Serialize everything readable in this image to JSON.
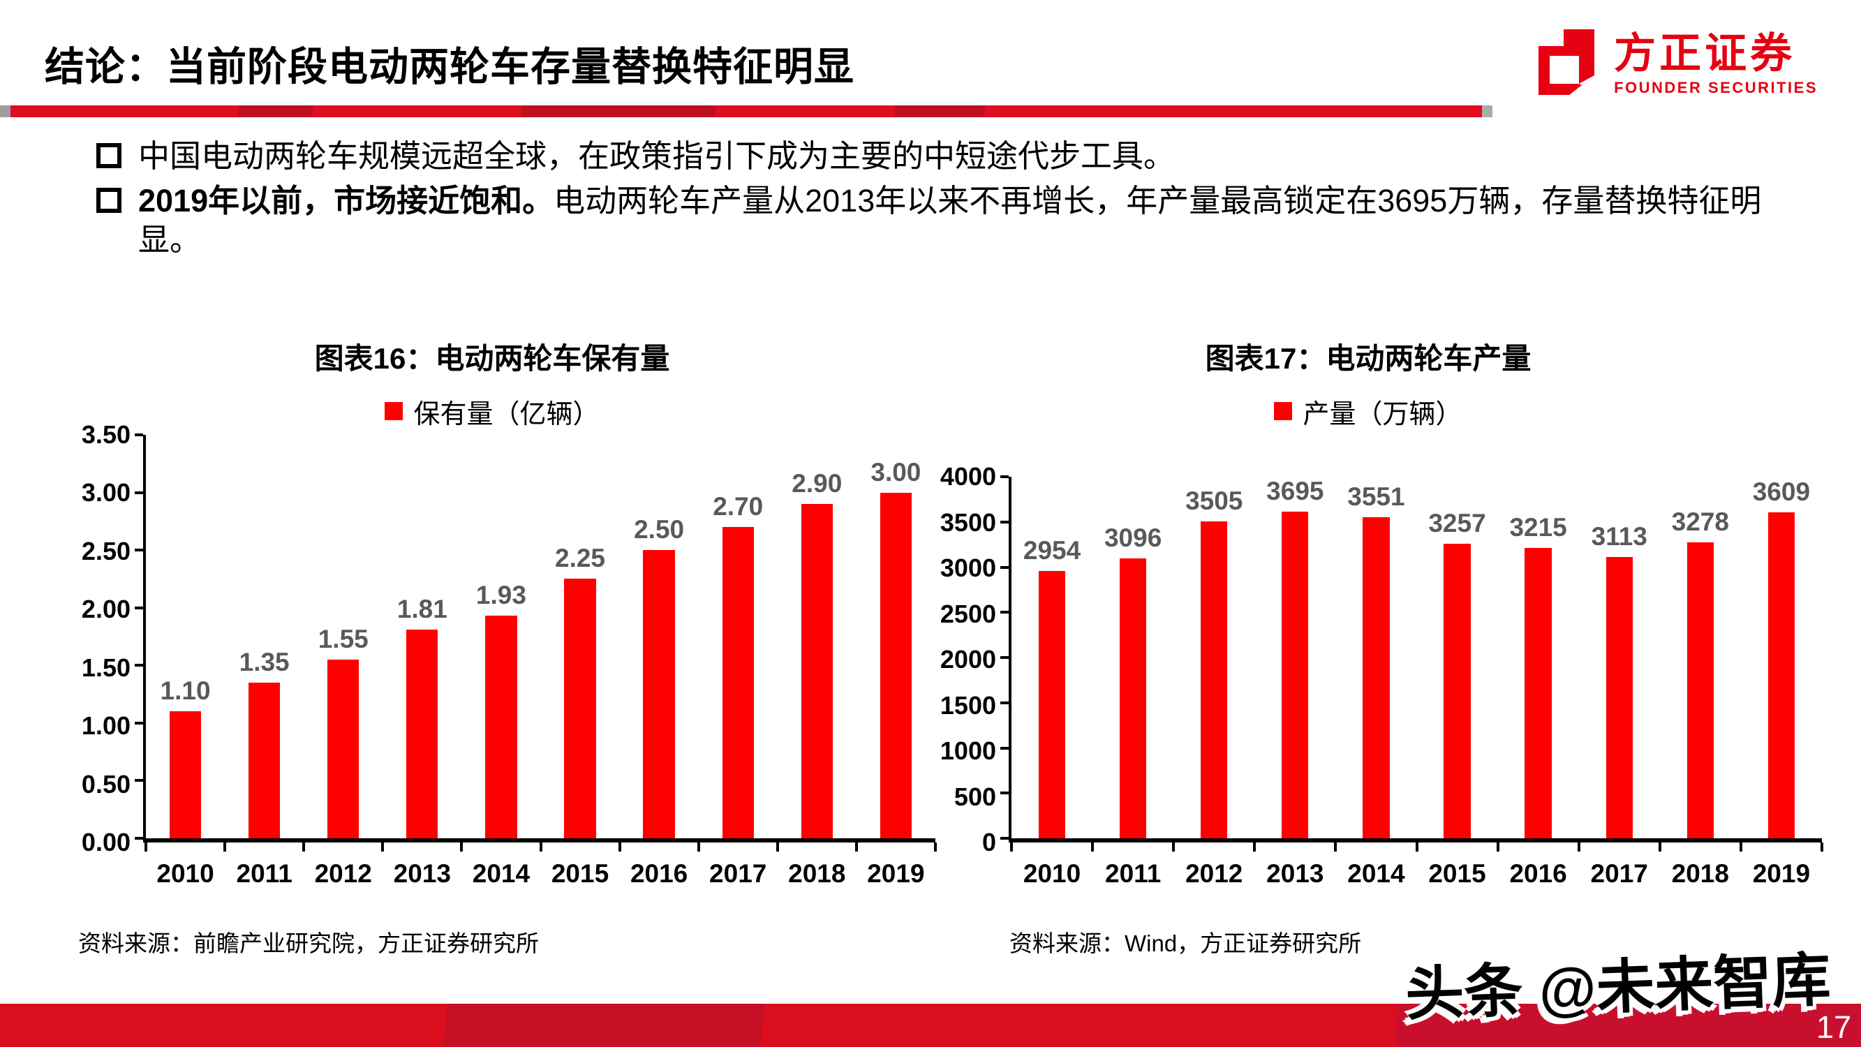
{
  "header": {
    "title": "结论：当前阶段电动两轮车存量替换特征明显",
    "logo": {
      "cn": "方正证券",
      "en": "FOUNDER SECURITIES"
    }
  },
  "bullets": [
    {
      "bold": "",
      "text": "中国电动两轮车规模远超全球，在政策指引下成为主要的中短途代步工具。"
    },
    {
      "bold": "2019年以前，市场接近饱和。",
      "text": "电动两轮车产量从2013年以来不再增长，年产量最高锁定在3695万辆，存量替换特征明显。"
    }
  ],
  "chart_data": [
    {
      "type": "bar",
      "title": "图表16：电动两轮车保有量",
      "legend": "保有量（亿辆）",
      "legend_position": "top",
      "grid": false,
      "categories": [
        "2010",
        "2011",
        "2012",
        "2013",
        "2014",
        "2015",
        "2016",
        "2017",
        "2018",
        "2019"
      ],
      "values": [
        1.1,
        1.35,
        1.55,
        1.81,
        1.93,
        2.25,
        2.5,
        2.7,
        2.9,
        3.0
      ],
      "value_labels": [
        "1.10",
        "1.35",
        "1.55",
        "1.81",
        "1.93",
        "2.25",
        "2.50",
        "2.70",
        "2.90",
        "3.00"
      ],
      "ylim": [
        0,
        3.5
      ],
      "yticks": [
        0,
        0.5,
        1,
        1.5,
        2,
        2.5,
        3,
        3.5
      ],
      "ytick_labels": [
        "0.00",
        "0.50",
        "1.00",
        "1.50",
        "2.00",
        "2.50",
        "3.00",
        "3.50"
      ],
      "source": "资料来源：前瞻产业研究院，方正证券研究所"
    },
    {
      "type": "bar",
      "title": "图表17：电动两轮车产量",
      "legend": "产量（万辆）",
      "legend_position": "top",
      "grid": false,
      "categories": [
        "2010",
        "2011",
        "2012",
        "2013",
        "2014",
        "2015",
        "2016",
        "2017",
        "2018",
        "2019"
      ],
      "values": [
        2954,
        3096,
        3505,
        3695,
        3551,
        3257,
        3215,
        3113,
        3278,
        3609
      ],
      "value_labels": [
        "2954",
        "3096",
        "3505",
        "3695",
        "3551",
        "3257",
        "3215",
        "3113",
        "3278",
        "3609"
      ],
      "ylim": [
        0,
        4000
      ],
      "yticks": [
        0,
        500,
        1000,
        1500,
        2000,
        2500,
        3000,
        3500,
        4000
      ],
      "ytick_labels": [
        "0",
        "500",
        "1000",
        "1500",
        "2000",
        "2500",
        "3000",
        "3500",
        "4000"
      ],
      "source": "资料来源：Wind，方正证券研究所"
    }
  ],
  "footer": {
    "watermark": "头条 @未来智库",
    "page": "17"
  },
  "colors": {
    "bar_red": "#FF0000",
    "logo_red": "#E60012",
    "data_label_gray": "#595959",
    "footer_red_bright": "#DB0E1E",
    "footer_red_dark": "#C8102E",
    "page_number_white": "#FFFFFF"
  }
}
